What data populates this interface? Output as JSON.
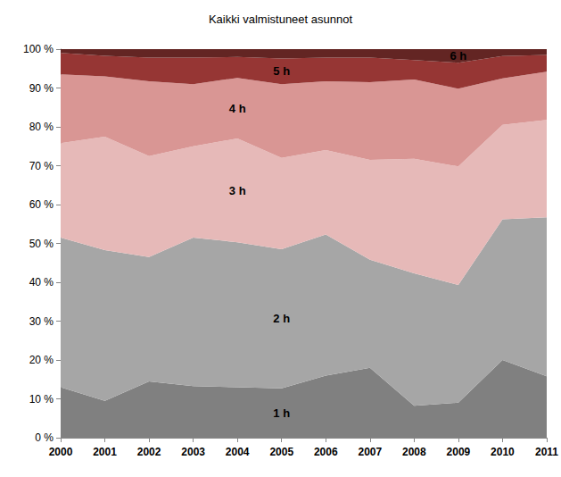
{
  "chart_data": {
    "type": "area",
    "title": "Kaikki valmistuneet asunnot",
    "stacked": true,
    "grid": false,
    "categories": [
      "2000",
      "2001",
      "2002",
      "2003",
      "2004",
      "2005",
      "2006",
      "2007",
      "2008",
      "2009",
      "2010",
      "2011"
    ],
    "series": [
      {
        "name": "1 h",
        "color": "#808080",
        "values": [
          13,
          9.5,
          14.5,
          13.3,
          13,
          12.7,
          16,
          18,
          8.2,
          9,
          20,
          15.8
        ]
      },
      {
        "name": "2 h",
        "color": "#a6a6a6",
        "values": [
          38.5,
          38.8,
          32,
          38.2,
          37.3,
          35.8,
          36.3,
          27.8,
          34.1,
          30.3,
          36.2,
          40.9
        ]
      },
      {
        "name": "3 h",
        "color": "#e6b9b8",
        "values": [
          24.3,
          29.2,
          26,
          23.5,
          26.7,
          23.5,
          21.7,
          25.7,
          29.5,
          30.5,
          24.3,
          25.1
        ]
      },
      {
        "name": "4 h",
        "color": "#d99694",
        "values": [
          17.7,
          15.5,
          19.2,
          16,
          15.6,
          19,
          17.7,
          20,
          20.4,
          20,
          12,
          12.4
        ]
      },
      {
        "name": "5 h",
        "color": "#963634",
        "values": [
          5.5,
          5.3,
          6.1,
          6.8,
          5.4,
          6.6,
          6.1,
          6.3,
          5,
          6.7,
          5.7,
          4.3
        ]
      },
      {
        "name": "6 h",
        "color": "#632523",
        "values": [
          1,
          1.7,
          2.2,
          2.2,
          2,
          2.4,
          2.2,
          2.2,
          2.8,
          3.5,
          1.8,
          1.5
        ]
      }
    ],
    "ylim": [
      0,
      100
    ],
    "yticks": [
      {
        "value": 0,
        "label": "0 %"
      },
      {
        "value": 10,
        "label": "10 %"
      },
      {
        "value": 20,
        "label": "20 %"
      },
      {
        "value": 30,
        "label": "30 %"
      },
      {
        "value": 40,
        "label": "40 %"
      },
      {
        "value": 50,
        "label": "50 %"
      },
      {
        "value": 60,
        "label": "60 %"
      },
      {
        "value": 70,
        "label": "70 %"
      },
      {
        "value": 80,
        "label": "80 %"
      },
      {
        "value": 90,
        "label": "90 %"
      },
      {
        "value": 100,
        "label": "100 %"
      }
    ]
  }
}
